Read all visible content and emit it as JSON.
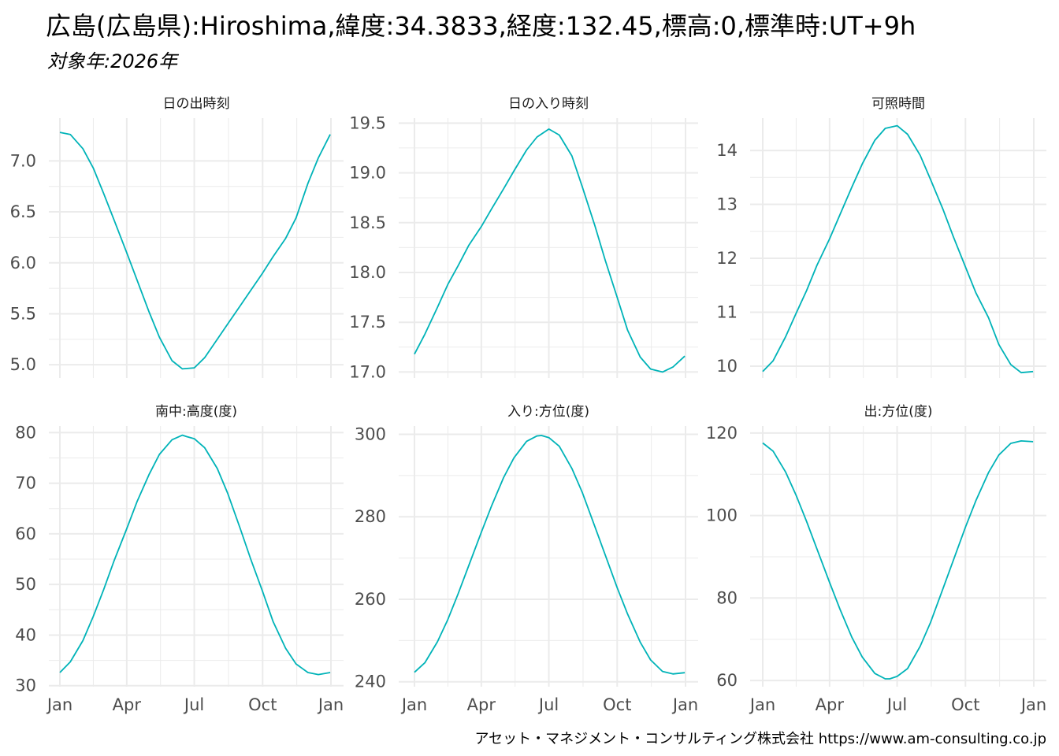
{
  "title": "広島(広島県):Hiroshima,緯度:34.3833,経度:132.45,標高:0,標準時:UT+9h",
  "subtitle": "対象年:2026年",
  "caption": "アセット・マネジメント・コンサルティング株式会社 https://www.am-consulting.co.jp",
  "colors": {
    "line": "#00b3b8",
    "grid": "#ebebeb",
    "text": "#4d4d4d"
  },
  "chart_data": [
    {
      "type": "line",
      "title": "日の出時刻",
      "x_ticks": [
        "Jan",
        "Apr",
        "Jul",
        "Oct",
        "Jan"
      ],
      "ylim": [
        4.87,
        7.42
      ],
      "yticks": [
        5.0,
        5.5,
        6.0,
        6.5,
        7.0
      ],
      "ytick_labels": [
        "5.0",
        "5.5",
        "6.0",
        "6.5",
        "7.0"
      ],
      "x": [
        1,
        15,
        32,
        46,
        60,
        74,
        91,
        105,
        121,
        135,
        152,
        166,
        182,
        196,
        213,
        227,
        244,
        258,
        274,
        288,
        305,
        319,
        335,
        349,
        365
      ],
      "values": [
        7.28,
        7.26,
        7.12,
        6.93,
        6.68,
        6.42,
        6.1,
        5.83,
        5.52,
        5.27,
        5.04,
        4.96,
        4.97,
        5.07,
        5.25,
        5.4,
        5.58,
        5.73,
        5.9,
        6.06,
        6.24,
        6.44,
        6.78,
        7.03,
        7.26
      ]
    },
    {
      "type": "line",
      "title": "日の入り時刻",
      "x_ticks": [
        "Jan",
        "Apr",
        "Jul",
        "Oct",
        "Jan"
      ],
      "ylim": [
        16.94,
        19.55
      ],
      "yticks": [
        17.0,
        17.5,
        18.0,
        18.5,
        19.0,
        19.5
      ],
      "ytick_labels": [
        "17.0",
        "17.5",
        "18.0",
        "18.5",
        "19.0",
        "19.5"
      ],
      "x": [
        1,
        15,
        32,
        46,
        60,
        74,
        91,
        105,
        121,
        135,
        152,
        166,
        182,
        196,
        213,
        227,
        244,
        258,
        274,
        288,
        305,
        319,
        335,
        349,
        365
      ],
      "values": [
        17.18,
        17.38,
        17.65,
        17.88,
        18.07,
        18.27,
        18.46,
        18.64,
        18.84,
        19.02,
        19.23,
        19.36,
        19.44,
        19.38,
        19.17,
        18.86,
        18.47,
        18.12,
        17.75,
        17.42,
        17.15,
        17.03,
        17.0,
        17.05,
        17.16
      ]
    },
    {
      "type": "line",
      "title": "可照時間",
      "x_ticks": [
        "Jan",
        "Apr",
        "Jul",
        "Oct",
        "Jan"
      ],
      "ylim": [
        9.78,
        14.6
      ],
      "yticks": [
        10,
        11,
        12,
        13,
        14
      ],
      "ytick_labels": [
        "10",
        "11",
        "12",
        "13",
        "14"
      ],
      "x": [
        1,
        15,
        32,
        46,
        60,
        74,
        91,
        105,
        121,
        135,
        152,
        166,
        182,
        196,
        213,
        227,
        244,
        258,
        274,
        288,
        305,
        319,
        335,
        349,
        365
      ],
      "values": [
        9.9,
        10.1,
        10.55,
        10.98,
        11.4,
        11.87,
        12.36,
        12.81,
        13.32,
        13.75,
        14.19,
        14.41,
        14.46,
        14.3,
        13.91,
        13.46,
        12.9,
        12.39,
        11.84,
        11.36,
        10.9,
        10.4,
        10.03,
        9.88,
        9.9
      ]
    },
    {
      "type": "line",
      "title": "南中:高度(度)",
      "x_ticks": [
        "Jan",
        "Apr",
        "Jul",
        "Oct",
        "Jan"
      ],
      "ylim": [
        29.8,
        81.3
      ],
      "yticks": [
        30,
        40,
        50,
        60,
        70,
        80
      ],
      "ytick_labels": [
        "30",
        "40",
        "50",
        "60",
        "70",
        "80"
      ],
      "x": [
        1,
        15,
        32,
        46,
        60,
        74,
        91,
        105,
        121,
        135,
        152,
        166,
        172,
        182,
        196,
        213,
        227,
        244,
        258,
        274,
        288,
        305,
        319,
        335,
        349,
        365
      ],
      "values": [
        32.6,
        34.7,
        38.9,
        43.7,
        49.0,
        54.7,
        61.0,
        66.4,
        71.7,
        75.7,
        78.6,
        79.5,
        79.2,
        78.8,
        77.0,
        72.9,
        68.0,
        61.0,
        55.0,
        48.6,
        42.7,
        37.4,
        34.3,
        32.6,
        32.2,
        32.6
      ]
    },
    {
      "type": "line",
      "title": "入り:方位(度)",
      "x_ticks": [
        "Jan",
        "Apr",
        "Jul",
        "Oct",
        "Jan"
      ],
      "ylim": [
        238.8,
        302.0
      ],
      "yticks": [
        240,
        260,
        280,
        300
      ],
      "ytick_labels": [
        "240",
        "260",
        "280",
        "300"
      ],
      "x": [
        1,
        15,
        32,
        46,
        60,
        74,
        91,
        105,
        121,
        135,
        152,
        166,
        172,
        182,
        196,
        213,
        227,
        244,
        258,
        274,
        288,
        305,
        319,
        335,
        349,
        365
      ],
      "values": [
        242.3,
        244.6,
        249.7,
        255.1,
        261.4,
        268.1,
        276.2,
        282.7,
        289.5,
        294.3,
        298.3,
        299.6,
        299.7,
        299.2,
        297.1,
        291.7,
        285.9,
        277.6,
        270.7,
        262.8,
        256.4,
        249.6,
        245.3,
        242.5,
        241.9,
        242.2
      ]
    },
    {
      "type": "line",
      "title": "出:方位(度)",
      "x_ticks": [
        "Jan",
        "Apr",
        "Jul",
        "Oct",
        "Jan"
      ],
      "ylim": [
        58.5,
        121.7
      ],
      "yticks": [
        60,
        80,
        100,
        120
      ],
      "ytick_labels": [
        "60",
        "80",
        "100",
        "120"
      ],
      "x": [
        1,
        15,
        32,
        46,
        60,
        74,
        91,
        105,
        121,
        135,
        152,
        166,
        172,
        182,
        196,
        213,
        227,
        244,
        258,
        274,
        288,
        305,
        319,
        335,
        349,
        365
      ],
      "values": [
        117.6,
        115.6,
        110.5,
        104.9,
        98.6,
        91.9,
        83.8,
        77.3,
        70.5,
        65.7,
        61.7,
        60.4,
        60.4,
        61.0,
        62.9,
        68.3,
        74.1,
        82.4,
        89.3,
        97.2,
        103.6,
        110.4,
        114.7,
        117.5,
        118.1,
        117.9
      ]
    }
  ]
}
